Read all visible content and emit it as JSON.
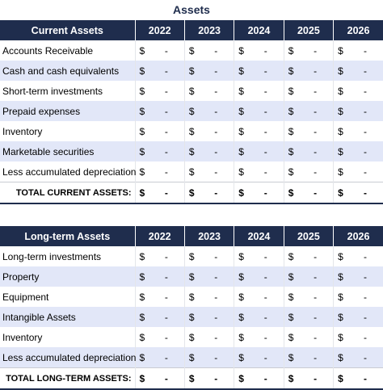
{
  "title": "Assets",
  "tables": [
    {
      "header": [
        "Current Assets",
        "2022",
        "2023",
        "2024",
        "2025",
        "2026"
      ],
      "rows": [
        {
          "label": "Accounts Receivable",
          "cells": [
            [
              "$",
              "-"
            ],
            [
              "$",
              "-"
            ],
            [
              "$",
              "-"
            ],
            [
              "$",
              "-"
            ],
            [
              "$",
              "-"
            ]
          ]
        },
        {
          "label": "Cash and cash equivalents",
          "cells": [
            [
              "$",
              "-"
            ],
            [
              "$",
              "-"
            ],
            [
              "$",
              "-"
            ],
            [
              "$",
              "-"
            ],
            [
              "$",
              "-"
            ]
          ]
        },
        {
          "label": "Short-term investments",
          "cells": [
            [
              "$",
              "-"
            ],
            [
              "$",
              "-"
            ],
            [
              "$",
              "-"
            ],
            [
              "$",
              "-"
            ],
            [
              "$",
              "-"
            ]
          ]
        },
        {
          "label": "Prepaid expenses",
          "cells": [
            [
              "$",
              "-"
            ],
            [
              "$",
              "-"
            ],
            [
              "$",
              "-"
            ],
            [
              "$",
              "-"
            ],
            [
              "$",
              "-"
            ]
          ]
        },
        {
          "label": "Inventory",
          "cells": [
            [
              "$",
              "-"
            ],
            [
              "$",
              "-"
            ],
            [
              "$",
              "-"
            ],
            [
              "$",
              "-"
            ],
            [
              "$",
              "-"
            ]
          ]
        },
        {
          "label": "Marketable securities",
          "cells": [
            [
              "$",
              "-"
            ],
            [
              "$",
              "-"
            ],
            [
              "$",
              "-"
            ],
            [
              "$",
              "-"
            ],
            [
              "$",
              "-"
            ]
          ]
        },
        {
          "label": "Less accumulated depreciation",
          "cells": [
            [
              "$",
              "-"
            ],
            [
              "$",
              "-"
            ],
            [
              "$",
              "-"
            ],
            [
              "$",
              "-"
            ],
            [
              "$",
              "-"
            ]
          ]
        }
      ],
      "total": {
        "label": "TOTAL CURRENT ASSETS:",
        "cells": [
          [
            "$",
            "-"
          ],
          [
            "$",
            "-"
          ],
          [
            "$",
            "-"
          ],
          [
            "$",
            "-"
          ],
          [
            "$",
            "-"
          ]
        ]
      }
    },
    {
      "header": [
        "Long-term Assets",
        "2022",
        "2023",
        "2024",
        "2025",
        "2026"
      ],
      "rows": [
        {
          "label": "Long-term investments",
          "cells": [
            [
              "$",
              "-"
            ],
            [
              "$",
              "-"
            ],
            [
              "$",
              "-"
            ],
            [
              "$",
              "-"
            ],
            [
              "$",
              "-"
            ]
          ]
        },
        {
          "label": "Property",
          "cells": [
            [
              "$",
              "-"
            ],
            [
              "$",
              "-"
            ],
            [
              "$",
              "-"
            ],
            [
              "$",
              "-"
            ],
            [
              "$",
              "-"
            ]
          ]
        },
        {
          "label": "Equipment",
          "cells": [
            [
              "$",
              "-"
            ],
            [
              "$",
              "-"
            ],
            [
              "$",
              "-"
            ],
            [
              "$",
              "-"
            ],
            [
              "$",
              "-"
            ]
          ]
        },
        {
          "label": "Intangible Assets",
          "cells": [
            [
              "$",
              "-"
            ],
            [
              "$",
              "-"
            ],
            [
              "$",
              "-"
            ],
            [
              "$",
              "-"
            ],
            [
              "$",
              "-"
            ]
          ]
        },
        {
          "label": "Inventory",
          "cells": [
            [
              "$",
              "-"
            ],
            [
              "$",
              "-"
            ],
            [
              "$",
              "-"
            ],
            [
              "$",
              "-"
            ],
            [
              "$",
              "-"
            ]
          ]
        },
        {
          "label": "Less accumulated depreciation",
          "cells": [
            [
              "$",
              "-"
            ],
            [
              "$",
              "-"
            ],
            [
              "$",
              "-"
            ],
            [
              "$",
              "-"
            ],
            [
              "$",
              "-"
            ]
          ]
        }
      ],
      "total": {
        "label": "TOTAL LONG-TERM ASSETS:",
        "cells": [
          [
            "$",
            "-"
          ],
          [
            "$",
            "-"
          ],
          [
            "$",
            "-"
          ],
          [
            "$",
            "-"
          ],
          [
            "$",
            "-"
          ]
        ]
      }
    }
  ]
}
